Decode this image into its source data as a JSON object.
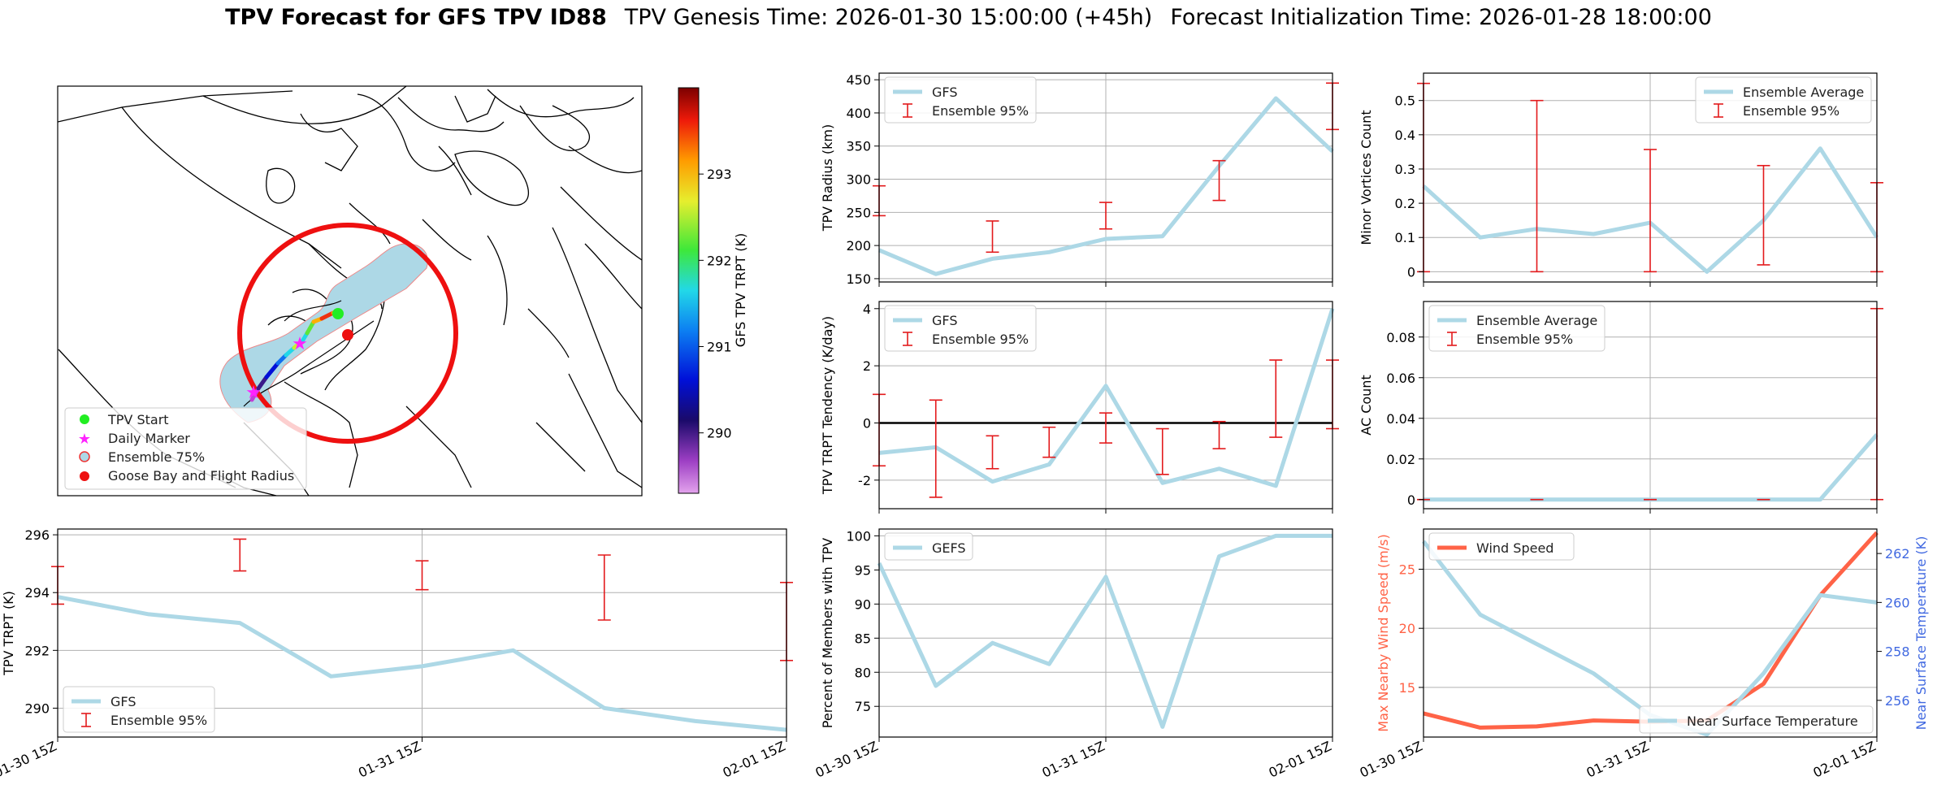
{
  "title": {
    "bold": "TPV Forecast for GFS TPV ID88",
    "genesis": "TPV Genesis Time: 2026-01-30 15:00:00 (+45h)",
    "init": "Forecast Initialization Time: 2026-01-28 18:00:00"
  },
  "colors": {
    "line": "#add8e6",
    "err": "#e31a1c",
    "wind": "#ff6347",
    "temp_axis": "#4169e1",
    "grid": "#b0b0b0"
  },
  "chart_data": [
    {
      "id": "map",
      "type": "map",
      "legend": [
        "TPV Start",
        "Daily Marker",
        "Ensemble 75%",
        "Goose Bay and Flight Radius"
      ],
      "colorbar": {
        "label": "GFS TPV TRPT (K)",
        "range": [
          289.3,
          294.0
        ],
        "ticks": [
          290,
          291,
          292,
          293
        ]
      }
    },
    {
      "id": "radius",
      "type": "line",
      "ylabel": "TPV Radius (km)",
      "ylim": [
        145,
        460
      ],
      "yticks": [
        150,
        200,
        250,
        300,
        350,
        400,
        450
      ],
      "x": [
        0,
        0.25,
        0.5,
        0.75,
        1,
        1.25,
        1.5,
        1.75,
        2
      ],
      "series": [
        {
          "name": "GFS",
          "values": [
            193,
            157,
            180,
            190,
            210,
            214,
            320,
            422,
            342
          ]
        }
      ],
      "errorbars": {
        "name": "Ensemble 95%",
        "x": [
          0,
          0.5,
          1,
          1.5,
          2
        ],
        "low": [
          245,
          190,
          225,
          268,
          375
        ],
        "high": [
          290,
          237,
          265,
          328,
          445
        ]
      },
      "legend": [
        "GFS",
        "Ensemble 95%"
      ],
      "legend_position": "top-left"
    },
    {
      "id": "minor",
      "type": "line",
      "ylabel": "Minor Vortices Count",
      "ylim": [
        -0.03,
        0.58
      ],
      "yticks": [
        0.0,
        0.1,
        0.2,
        0.3,
        0.4,
        0.5
      ],
      "x": [
        0,
        0.25,
        0.5,
        0.75,
        1,
        1.25,
        1.5,
        1.75,
        2
      ],
      "series": [
        {
          "name": "Ensemble Average",
          "values": [
            0.25,
            0.1,
            0.125,
            0.11,
            0.143,
            0.0,
            0.15,
            0.36,
            0.1
          ]
        }
      ],
      "errorbars": {
        "name": "Ensemble 95%",
        "x": [
          0,
          0.5,
          1,
          1.5,
          2
        ],
        "low": [
          0.0,
          0.0,
          0.0,
          0.02,
          0.0
        ],
        "high": [
          0.55,
          0.5,
          0.357,
          0.31,
          0.26
        ]
      },
      "legend": [
        "Ensemble Average",
        "Ensemble 95%"
      ],
      "legend_position": "top-right"
    },
    {
      "id": "tendency",
      "type": "line",
      "ylabel": "TPV TRPT Tendency (K/day)",
      "ylim": [
        -3.0,
        4.25
      ],
      "yticks": [
        -2,
        0,
        2,
        4
      ],
      "zero_line": true,
      "x": [
        0,
        0.25,
        0.5,
        0.75,
        1,
        1.25,
        1.5,
        1.75,
        2
      ],
      "series": [
        {
          "name": "GFS",
          "values": [
            -1.05,
            -0.85,
            -2.05,
            -1.45,
            1.3,
            -2.1,
            -1.6,
            -2.2,
            4.0
          ]
        }
      ],
      "errorbars": {
        "name": "Ensemble 95%",
        "x": [
          0,
          0.25,
          0.5,
          0.75,
          1,
          1.25,
          1.5,
          1.75,
          2
        ],
        "low": [
          -1.5,
          -2.6,
          -1.6,
          -1.2,
          -0.7,
          -1.8,
          -0.9,
          -0.5,
          -0.2
        ],
        "high": [
          1.0,
          0.8,
          -0.45,
          -0.15,
          0.35,
          -0.2,
          0.05,
          2.2,
          2.2
        ]
      },
      "legend": [
        "GFS",
        "Ensemble 95%"
      ],
      "legend_position": "top-left"
    },
    {
      "id": "ac",
      "type": "line",
      "ylabel": "AC Count",
      "ylim": [
        -0.0045,
        0.0975
      ],
      "yticks": [
        0.0,
        0.02,
        0.04,
        0.06,
        0.08
      ],
      "x": [
        0,
        0.25,
        0.5,
        0.75,
        1,
        1.25,
        1.5,
        1.75,
        2
      ],
      "series": [
        {
          "name": "Ensemble Average",
          "values": [
            0,
            0,
            0,
            0,
            0,
            0,
            0,
            0,
            0.032
          ]
        }
      ],
      "errorbars": {
        "name": "Ensemble 95%",
        "x": [
          0,
          0.5,
          1,
          1.5,
          2
        ],
        "low": [
          0,
          0,
          0,
          0,
          0
        ],
        "high": [
          0,
          0,
          0,
          0,
          0.094
        ]
      },
      "legend": [
        "Ensemble Average",
        "Ensemble 95%"
      ],
      "legend_position": "top-left"
    },
    {
      "id": "trpt",
      "type": "line",
      "ylabel": "TPV TRPT (K)",
      "ylim": [
        289.0,
        296.2
      ],
      "yticks": [
        290,
        292,
        294,
        296
      ],
      "x": [
        0,
        0.25,
        0.5,
        0.75,
        1,
        1.25,
        1.5,
        1.75,
        2
      ],
      "xticklabels": [
        "01-30 15Z",
        "01-31 15Z",
        "02-01 15Z"
      ],
      "series": [
        {
          "name": "GFS",
          "values": [
            293.85,
            293.25,
            292.95,
            291.1,
            291.45,
            292.0,
            290.0,
            289.55,
            289.25
          ]
        }
      ],
      "errorbars": {
        "name": "Ensemble 95%",
        "x": [
          0,
          0.5,
          1,
          1.5,
          2
        ],
        "low": [
          293.6,
          294.75,
          294.1,
          293.05,
          291.65
        ],
        "high": [
          294.9,
          295.85,
          295.1,
          295.3,
          294.35
        ]
      },
      "legend": [
        "GFS",
        "Ensemble 95%"
      ],
      "legend_position": "bottom-left"
    },
    {
      "id": "percent",
      "type": "line",
      "ylabel": "Percent of Members with TPV",
      "ylim": [
        70.5,
        101.0
      ],
      "yticks": [
        75,
        80,
        85,
        90,
        95,
        100
      ],
      "x": [
        0,
        0.25,
        0.5,
        0.75,
        1,
        1.25,
        1.5,
        1.75,
        2
      ],
      "xticklabels": [
        "01-30 15Z",
        "01-31 15Z",
        "02-01 15Z"
      ],
      "series": [
        {
          "name": "GEFS",
          "values": [
            96,
            78,
            84.3,
            81.2,
            94,
            72,
            97,
            100,
            100
          ]
        }
      ],
      "legend": [
        "GEFS"
      ],
      "legend_position": "top-left"
    },
    {
      "id": "wind",
      "type": "line",
      "ylabel": "Max Nearby Wind Speed (m/s)",
      "ylim": [
        10.8,
        28.4
      ],
      "yticks": [
        15,
        20,
        25
      ],
      "y2label": "Near Surface Temperature (K)",
      "y2lim": [
        254.5,
        263.0
      ],
      "y2ticks": [
        256,
        258,
        260,
        262
      ],
      "x": [
        0,
        0.25,
        0.5,
        0.75,
        1,
        1.25,
        1.5,
        1.75,
        2
      ],
      "xticklabels": [
        "01-30 15Z",
        "01-31 15Z",
        "02-01 15Z"
      ],
      "series": [
        {
          "name": "Wind Speed",
          "axis": "left",
          "values": [
            12.8,
            11.6,
            11.7,
            12.2,
            12.1,
            12.2,
            15.3,
            22.8,
            28.1
          ]
        },
        {
          "name": "Near Surface Temperature",
          "axis": "right",
          "values": [
            262.5,
            259.5,
            258.3,
            257.1,
            255.4,
            254.6,
            257.1,
            260.3,
            260.0
          ]
        }
      ],
      "legend": [
        "Wind Speed",
        "Near Surface Temperature"
      ],
      "legend_position": "top-left / bottom-right"
    }
  ]
}
